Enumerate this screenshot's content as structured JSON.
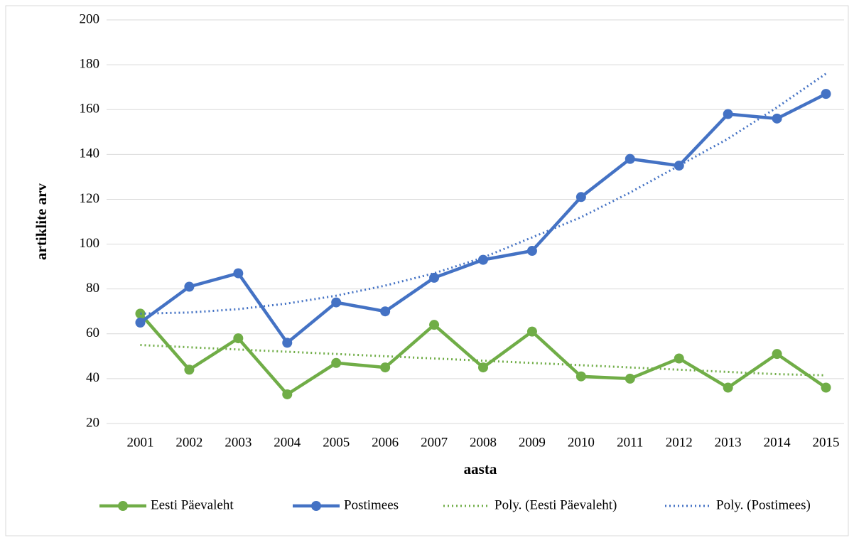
{
  "chart_data": {
    "type": "line",
    "x_label": "aasta",
    "y_label": "artiklite arv",
    "categories": [
      "2001",
      "2002",
      "2003",
      "2004",
      "2005",
      "2006",
      "2007",
      "2008",
      "2009",
      "2010",
      "2011",
      "2012",
      "2013",
      "2014",
      "2015"
    ],
    "series": [
      {
        "name": "Eesti Päevaleht",
        "color": "#70ad47",
        "line_style": "solid",
        "markers": true,
        "values": [
          69,
          44,
          58,
          33,
          47,
          45,
          64,
          45,
          61,
          41,
          40,
          49,
          36,
          51,
          36
        ]
      },
      {
        "name": "Postimees",
        "color": "#4472c4",
        "line_style": "solid",
        "markers": true,
        "values": [
          65,
          81,
          87,
          56,
          74,
          70,
          85,
          93,
          97,
          121,
          138,
          135,
          158,
          156,
          167
        ]
      },
      {
        "name": "Poly. (Eesti Päevaleht)",
        "color": "#70ad47",
        "line_style": "dotted",
        "markers": false,
        "values": [
          55,
          54,
          53,
          52,
          51,
          50,
          49,
          48,
          47,
          46,
          45,
          44,
          43,
          42,
          41.5
        ]
      },
      {
        "name": "Poly. (Postimees)",
        "color": "#4472c4",
        "line_style": "dotted",
        "markers": false,
        "values": [
          69,
          69.5,
          71,
          73.5,
          77,
          81.5,
          87,
          94,
          103,
          112,
          123,
          135,
          147,
          161,
          176
        ]
      }
    ],
    "ylim": [
      20,
      200
    ],
    "yticks": [
      20,
      40,
      60,
      80,
      100,
      120,
      140,
      160,
      180,
      200
    ],
    "grid": true,
    "legend": "bottom"
  }
}
